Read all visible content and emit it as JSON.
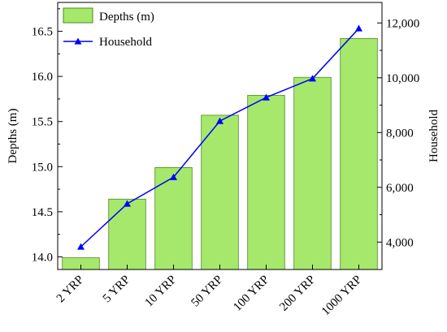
{
  "chart_data": {
    "type": "bar",
    "categories": [
      "2 YRP",
      "5 YRP",
      "10 YRP",
      "50 YRP",
      "100 YRP",
      "200 YRP",
      "1000 YRP"
    ],
    "series": [
      {
        "name": "Depths (m)",
        "type": "bar",
        "axis": "left",
        "color": "#a6e86b",
        "edge_color": "#4a8a1e",
        "values": [
          13.99,
          14.64,
          14.99,
          15.57,
          15.79,
          15.99,
          16.42
        ]
      },
      {
        "name": "Household",
        "type": "line",
        "axis": "right",
        "color": "#0000ff",
        "marker": "triangle",
        "values": [
          3830,
          5400,
          6370,
          8420,
          9280,
          9970,
          11800
        ]
      }
    ],
    "ylabel": "Depths (m)",
    "y2label": "Household",
    "ylim": [
      13.86,
      16.82
    ],
    "y2lim": [
      3000,
      12750
    ],
    "yticks": [
      14.0,
      14.5,
      15.0,
      15.5,
      16.0,
      16.5
    ],
    "ytick_labels": [
      "14.0",
      "14.5",
      "15.0",
      "15.5",
      "16.0",
      "16.5"
    ],
    "y2ticks": [
      4000,
      6000,
      8000,
      10000,
      12000
    ],
    "y2tick_labels": [
      "4,000",
      "6,000",
      "8,000",
      "10,000",
      "12,000"
    ],
    "xtick_rotation": -45,
    "legend_placement": "top-left",
    "grid": false
  }
}
